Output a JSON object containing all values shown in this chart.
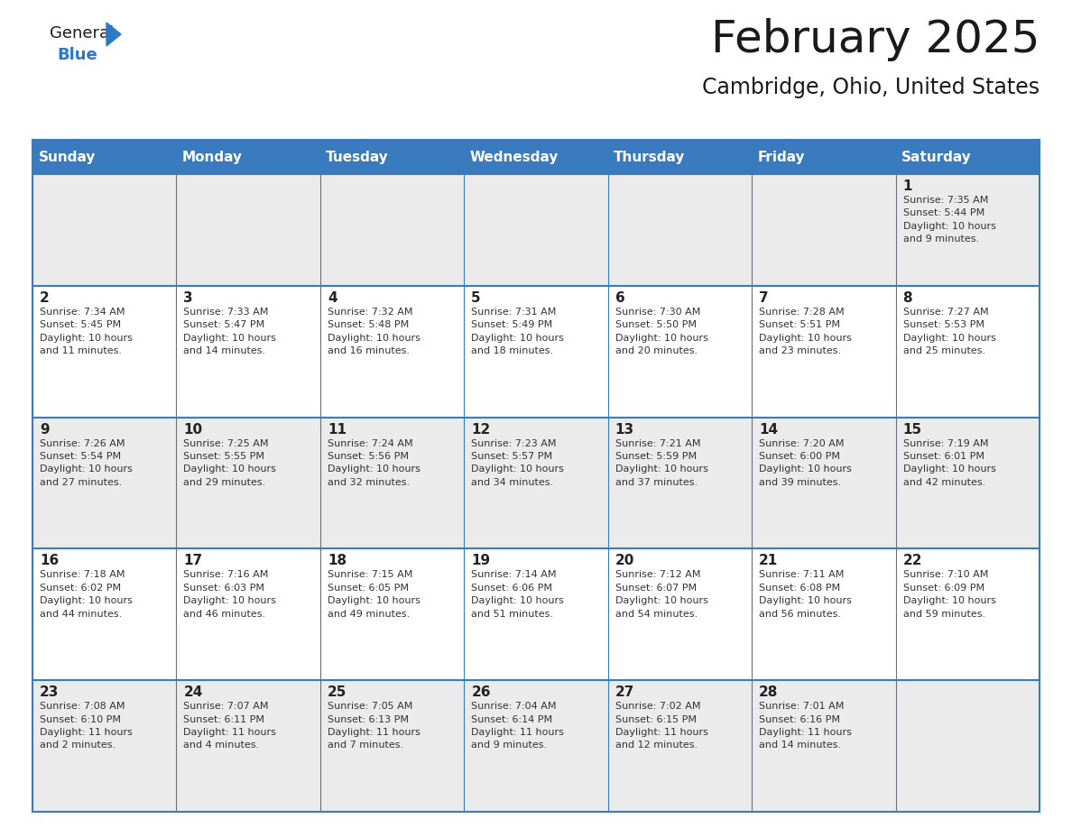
{
  "title": "February 2025",
  "subtitle": "Cambridge, Ohio, United States",
  "days_of_week": [
    "Sunday",
    "Monday",
    "Tuesday",
    "Wednesday",
    "Thursday",
    "Friday",
    "Saturday"
  ],
  "header_bg": "#3a7abf",
  "header_text": "#ffffff",
  "cell_bg_odd": "#ebebeb",
  "cell_bg_even": "#ffffff",
  "border_color": "#3a7abf",
  "day_num_color": "#222222",
  "info_color": "#333333",
  "logo_general_color": "#1a1a1a",
  "logo_blue_color": "#2a7ac7",
  "weeks": [
    [
      {
        "day": null,
        "info": null
      },
      {
        "day": null,
        "info": null
      },
      {
        "day": null,
        "info": null
      },
      {
        "day": null,
        "info": null
      },
      {
        "day": null,
        "info": null
      },
      {
        "day": null,
        "info": null
      },
      {
        "day": 1,
        "info": "Sunrise: 7:35 AM\nSunset: 5:44 PM\nDaylight: 10 hours\nand 9 minutes."
      }
    ],
    [
      {
        "day": 2,
        "info": "Sunrise: 7:34 AM\nSunset: 5:45 PM\nDaylight: 10 hours\nand 11 minutes."
      },
      {
        "day": 3,
        "info": "Sunrise: 7:33 AM\nSunset: 5:47 PM\nDaylight: 10 hours\nand 14 minutes."
      },
      {
        "day": 4,
        "info": "Sunrise: 7:32 AM\nSunset: 5:48 PM\nDaylight: 10 hours\nand 16 minutes."
      },
      {
        "day": 5,
        "info": "Sunrise: 7:31 AM\nSunset: 5:49 PM\nDaylight: 10 hours\nand 18 minutes."
      },
      {
        "day": 6,
        "info": "Sunrise: 7:30 AM\nSunset: 5:50 PM\nDaylight: 10 hours\nand 20 minutes."
      },
      {
        "day": 7,
        "info": "Sunrise: 7:28 AM\nSunset: 5:51 PM\nDaylight: 10 hours\nand 23 minutes."
      },
      {
        "day": 8,
        "info": "Sunrise: 7:27 AM\nSunset: 5:53 PM\nDaylight: 10 hours\nand 25 minutes."
      }
    ],
    [
      {
        "day": 9,
        "info": "Sunrise: 7:26 AM\nSunset: 5:54 PM\nDaylight: 10 hours\nand 27 minutes."
      },
      {
        "day": 10,
        "info": "Sunrise: 7:25 AM\nSunset: 5:55 PM\nDaylight: 10 hours\nand 29 minutes."
      },
      {
        "day": 11,
        "info": "Sunrise: 7:24 AM\nSunset: 5:56 PM\nDaylight: 10 hours\nand 32 minutes."
      },
      {
        "day": 12,
        "info": "Sunrise: 7:23 AM\nSunset: 5:57 PM\nDaylight: 10 hours\nand 34 minutes."
      },
      {
        "day": 13,
        "info": "Sunrise: 7:21 AM\nSunset: 5:59 PM\nDaylight: 10 hours\nand 37 minutes."
      },
      {
        "day": 14,
        "info": "Sunrise: 7:20 AM\nSunset: 6:00 PM\nDaylight: 10 hours\nand 39 minutes."
      },
      {
        "day": 15,
        "info": "Sunrise: 7:19 AM\nSunset: 6:01 PM\nDaylight: 10 hours\nand 42 minutes."
      }
    ],
    [
      {
        "day": 16,
        "info": "Sunrise: 7:18 AM\nSunset: 6:02 PM\nDaylight: 10 hours\nand 44 minutes."
      },
      {
        "day": 17,
        "info": "Sunrise: 7:16 AM\nSunset: 6:03 PM\nDaylight: 10 hours\nand 46 minutes."
      },
      {
        "day": 18,
        "info": "Sunrise: 7:15 AM\nSunset: 6:05 PM\nDaylight: 10 hours\nand 49 minutes."
      },
      {
        "day": 19,
        "info": "Sunrise: 7:14 AM\nSunset: 6:06 PM\nDaylight: 10 hours\nand 51 minutes."
      },
      {
        "day": 20,
        "info": "Sunrise: 7:12 AM\nSunset: 6:07 PM\nDaylight: 10 hours\nand 54 minutes."
      },
      {
        "day": 21,
        "info": "Sunrise: 7:11 AM\nSunset: 6:08 PM\nDaylight: 10 hours\nand 56 minutes."
      },
      {
        "day": 22,
        "info": "Sunrise: 7:10 AM\nSunset: 6:09 PM\nDaylight: 10 hours\nand 59 minutes."
      }
    ],
    [
      {
        "day": 23,
        "info": "Sunrise: 7:08 AM\nSunset: 6:10 PM\nDaylight: 11 hours\nand 2 minutes."
      },
      {
        "day": 24,
        "info": "Sunrise: 7:07 AM\nSunset: 6:11 PM\nDaylight: 11 hours\nand 4 minutes."
      },
      {
        "day": 25,
        "info": "Sunrise: 7:05 AM\nSunset: 6:13 PM\nDaylight: 11 hours\nand 7 minutes."
      },
      {
        "day": 26,
        "info": "Sunrise: 7:04 AM\nSunset: 6:14 PM\nDaylight: 11 hours\nand 9 minutes."
      },
      {
        "day": 27,
        "info": "Sunrise: 7:02 AM\nSunset: 6:15 PM\nDaylight: 11 hours\nand 12 minutes."
      },
      {
        "day": 28,
        "info": "Sunrise: 7:01 AM\nSunset: 6:16 PM\nDaylight: 11 hours\nand 14 minutes."
      },
      {
        "day": null,
        "info": null
      }
    ]
  ],
  "fig_width": 11.88,
  "fig_height": 9.18,
  "dpi": 100
}
